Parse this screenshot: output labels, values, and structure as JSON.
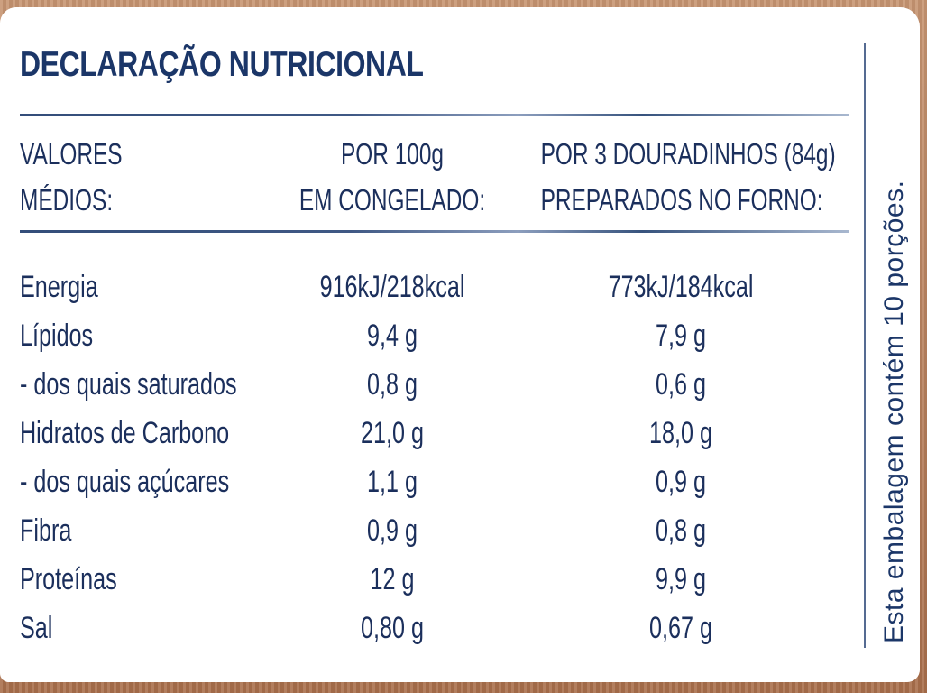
{
  "title": "DECLARAÇÃO NUTRICIONAL",
  "header": {
    "col1_line1": "VALORES",
    "col1_line2": "MÉDIOS:",
    "col2_line1": "POR 100g",
    "col2_line2": "EM CONGELADO:",
    "col3_line1": "POR 3 DOURADINHOS (84g)",
    "col3_line2": "PREPARADOS NO FORNO:"
  },
  "rows": [
    {
      "name": "Energia",
      "per100": "916kJ/218kcal",
      "per_portion": "773kJ/184kcal"
    },
    {
      "name": "Lípidos",
      "per100": "9,4 g",
      "per_portion": "7,9 g"
    },
    {
      "name": "- dos quais saturados",
      "per100": "0,8 g",
      "per_portion": "0,6 g"
    },
    {
      "name": "Hidratos de Carbono",
      "per100": "21,0 g",
      "per_portion": "18,0 g"
    },
    {
      "name": "- dos quais açúcares",
      "per100": "1,1 g",
      "per_portion": "0,9 g"
    },
    {
      "name": "Fibra",
      "per100": "0,9 g",
      "per_portion": "0,8 g"
    },
    {
      "name": "Proteínas",
      "per100": "12 g",
      "per_portion": "9,9 g"
    },
    {
      "name": "Sal",
      "per100": "0,80 g",
      "per_portion": "0,67 g"
    }
  ],
  "side_note": "Esta embalagem contém 10 porções.",
  "colors": {
    "text": "#1b3668",
    "background": "#ffffff",
    "border": "#b9805c"
  }
}
